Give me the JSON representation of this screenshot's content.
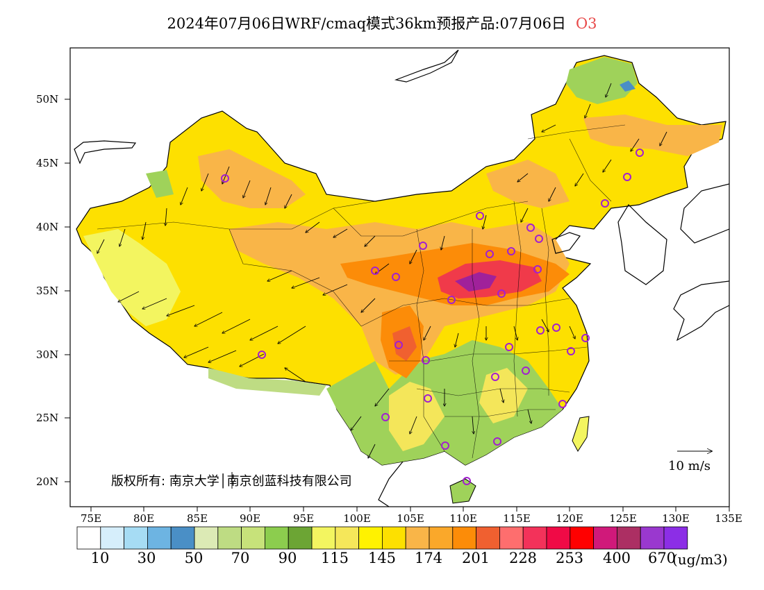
{
  "title": {
    "main": "2024年07月06日WRF/cmaq模式36km预报产品:07月06日",
    "pollutant": "O3"
  },
  "axes": {
    "lat_labels": [
      "50N",
      "45N",
      "40N",
      "35N",
      "30N",
      "25N",
      "20N"
    ],
    "lon_labels": [
      "75E",
      "80E",
      "85E",
      "90E",
      "95E",
      "100E",
      "105E",
      "110E",
      "115E",
      "120E",
      "125E",
      "130E",
      "135E"
    ],
    "lon_range": [
      73,
      135
    ],
    "lat_range": [
      18,
      54
    ]
  },
  "copyright": "版权所有: 南京大学│南京创蓝科技有限公司",
  "vector_reference": {
    "label": "10 m/s",
    "speed": 10,
    "icon": "arrow-right-icon"
  },
  "colorbar": {
    "unit": "(ug/m3)",
    "labels": [
      "10",
      "30",
      "50",
      "70",
      "90",
      "115",
      "145",
      "174",
      "201",
      "228",
      "253",
      "400",
      "670"
    ],
    "colors": [
      "#ffffff",
      "#d6eefb",
      "#a6dcf4",
      "#6db4e2",
      "#4a8fc6",
      "#dceab5",
      "#bedc83",
      "#c7e27a",
      "#8ccd4e",
      "#6ca534",
      "#f3f560",
      "#f5e75a",
      "#fff200",
      "#fde000",
      "#f9b548",
      "#faa82a",
      "#fc8c08",
      "#f06030",
      "#fe6e6e",
      "#f3325a",
      "#f00a46",
      "#ff0000",
      "#d0197a",
      "#ac2f63",
      "#9a38cf",
      "#8c2ee6"
    ]
  },
  "colors": {
    "low": "#9fd25a",
    "moderate": "#f4e65a",
    "high": "#f79b32",
    "very_high": "#e83c44",
    "extreme": "#a0219a",
    "station_marker": "#a21fd0",
    "coast": "#000000"
  },
  "station_icon": "circle-marker-icon"
}
